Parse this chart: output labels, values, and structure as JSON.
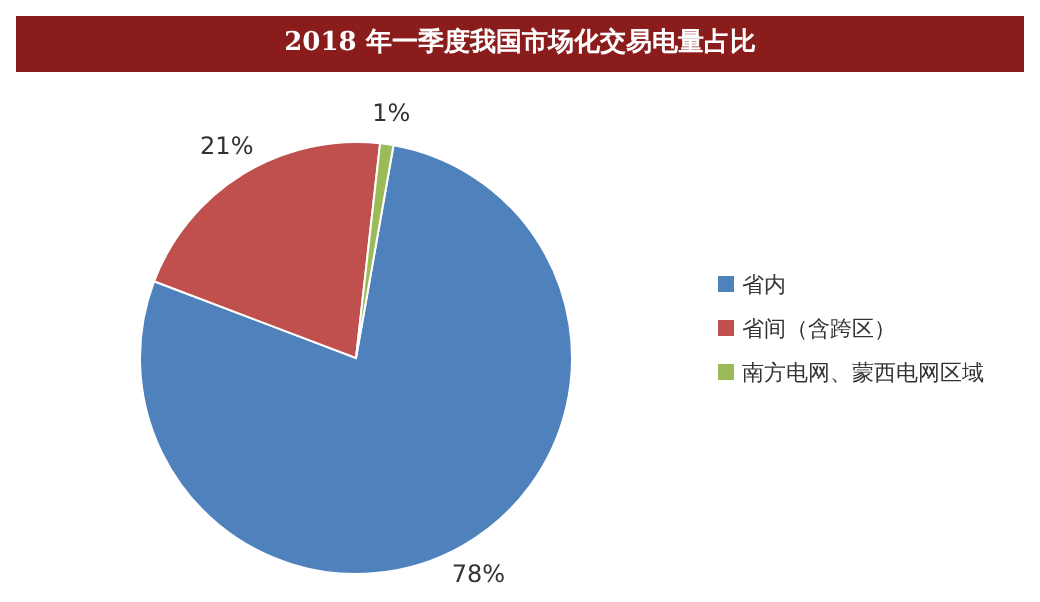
{
  "chart_data": {
    "type": "pie",
    "title": "2018 年一季度我国市场化交易电量占比",
    "categories": [
      "省内",
      "省间（含跨区）",
      "南方电网、蒙西电网区域"
    ],
    "values": [
      78,
      21,
      1
    ],
    "colors": [
      "#4f81bd",
      "#c0504d",
      "#9bbb59"
    ],
    "value_labels": [
      "78%",
      "21%",
      "1%"
    ],
    "legend": "right"
  }
}
